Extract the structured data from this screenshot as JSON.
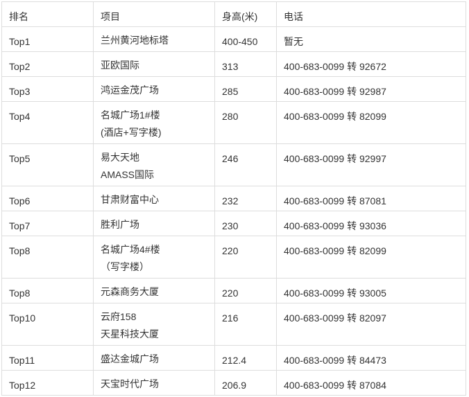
{
  "table": {
    "headers": [
      "排名",
      "项目",
      "身高(米)",
      "电话"
    ],
    "rows": [
      {
        "rank": "Top1",
        "project": [
          "兰州黄河地标塔"
        ],
        "height": "400-450",
        "phone": "暂无"
      },
      {
        "rank": "Top2",
        "project": [
          "亚欧国际"
        ],
        "height": "313",
        "phone": "400-683-0099 转 92672"
      },
      {
        "rank": "Top3",
        "project": [
          "鸿运金茂广场"
        ],
        "height": "285",
        "phone": "400-683-0099 转 92987"
      },
      {
        "rank": "Top4",
        "project": [
          "名城广场1#楼",
          "(酒店+写字楼)"
        ],
        "height": "280",
        "phone": "400-683-0099 转 82099"
      },
      {
        "rank": "Top5",
        "project": [
          "易大天地",
          "AMASS国际"
        ],
        "height": "246",
        "phone": "400-683-0099 转 92997"
      },
      {
        "rank": "Top6",
        "project": [
          "甘肃财富中心"
        ],
        "height": "232",
        "phone": "400-683-0099 转 87081"
      },
      {
        "rank": "Top7",
        "project": [
          "胜利广场"
        ],
        "height": "230",
        "phone": "400-683-0099 转 93036"
      },
      {
        "rank": "Top8",
        "project": [
          "名城广场4#楼",
          "（写字楼）"
        ],
        "height": "220",
        "phone": "400-683-0099 转 82099"
      },
      {
        "rank": "Top8",
        "project": [
          "元森商务大厦"
        ],
        "height": "220",
        "phone": "400-683-0099 转 93005"
      },
      {
        "rank": "Top10",
        "project": [
          "云府158",
          "天星科技大厦"
        ],
        "height": "216",
        "phone": "400-683-0099 转 82097"
      },
      {
        "rank": "Top11",
        "project": [
          "盛达金城广场"
        ],
        "height": "212.4",
        "phone": "400-683-0099 转 84473"
      },
      {
        "rank": "Top12",
        "project": [
          "天宝时代广场"
        ],
        "height": "206.9",
        "phone": "400-683-0099 转 87084"
      }
    ]
  }
}
